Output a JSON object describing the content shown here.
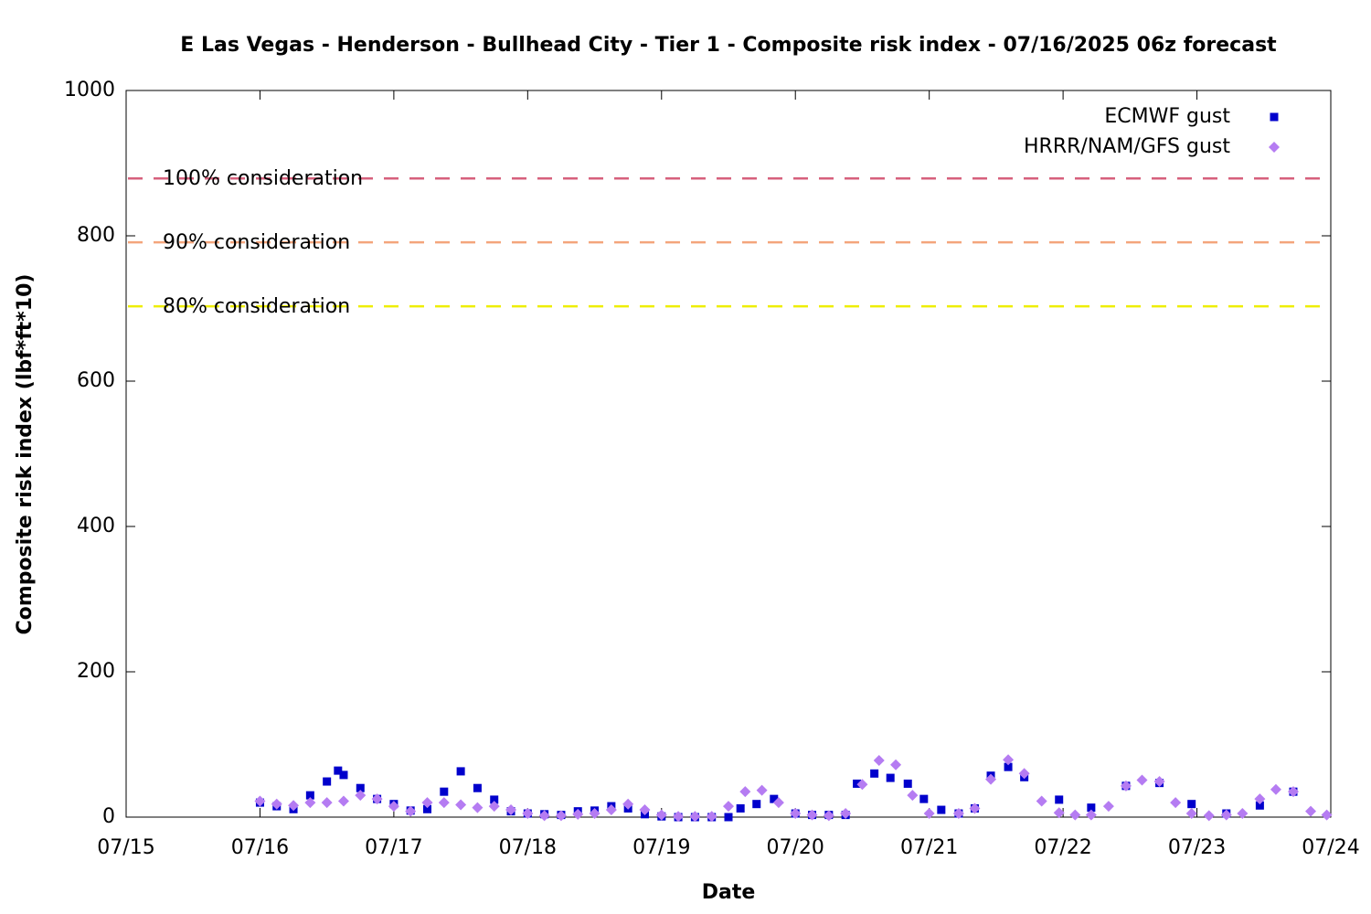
{
  "chart_data": {
    "type": "scatter",
    "title": "E Las Vegas - Henderson - Bullhead City - Tier 1 - Composite risk index - 07/16/2025 06z forecast",
    "xlabel": "Date",
    "ylabel": "Composite risk index (lbf*ft*10)",
    "xlim": [
      15,
      24
    ],
    "ylim": [
      0,
      1000
    ],
    "xticks": [
      {
        "value": 15,
        "label": "07/15"
      },
      {
        "value": 16,
        "label": "07/16"
      },
      {
        "value": 17,
        "label": "07/17"
      },
      {
        "value": 18,
        "label": "07/18"
      },
      {
        "value": 19,
        "label": "07/19"
      },
      {
        "value": 20,
        "label": "07/20"
      },
      {
        "value": 21,
        "label": "07/21"
      },
      {
        "value": 22,
        "label": "07/22"
      },
      {
        "value": 23,
        "label": "07/23"
      },
      {
        "value": 24,
        "label": "07/24"
      }
    ],
    "yticks": [
      0,
      200,
      400,
      600,
      800,
      1000
    ],
    "legend": "top-right",
    "thresholds": [
      {
        "label": "100% consideration",
        "value": 879,
        "color": "#d6607c"
      },
      {
        "label": "90% consideration",
        "value": 791,
        "color": "#f4a57c"
      },
      {
        "label": "80% consideration",
        "value": 703,
        "color": "#eeee00"
      }
    ],
    "series": [
      {
        "name": "ECMWF gust",
        "color": "#0000cc",
        "marker": "square",
        "x": [
          16.0,
          16.125,
          16.25,
          16.375,
          16.5,
          16.583,
          16.625,
          16.75,
          16.875,
          17.0,
          17.125,
          17.25,
          17.375,
          17.5,
          17.625,
          17.75,
          17.875,
          18.0,
          18.125,
          18.25,
          18.375,
          18.5,
          18.625,
          18.75,
          18.875,
          19.0,
          19.125,
          19.25,
          19.375,
          19.5,
          19.59,
          19.71,
          19.84,
          20.0,
          20.125,
          20.25,
          20.375,
          20.46,
          20.59,
          20.71,
          20.84,
          20.96,
          21.09,
          21.22,
          21.34,
          21.46,
          21.59,
          21.71,
          21.97,
          22.21,
          22.47,
          22.72,
          22.96,
          23.22,
          23.47,
          23.72
        ],
        "values": [
          20,
          15,
          11,
          30,
          49,
          64,
          58,
          40,
          25,
          18,
          9,
          11,
          35,
          63,
          40,
          24,
          8,
          5,
          4,
          3,
          8,
          9,
          15,
          12,
          4,
          1,
          0,
          0,
          0,
          0,
          12,
          18,
          25,
          5,
          3,
          3,
          3,
          46,
          60,
          54,
          46,
          25,
          10,
          5,
          12,
          57,
          69,
          55,
          24,
          13,
          43,
          47,
          18,
          5,
          16,
          35
        ]
      },
      {
        "name": "HRRR/NAM/GFS gust",
        "color": "#b57cf2",
        "marker": "diamond",
        "x": [
          16.0,
          16.125,
          16.25,
          16.375,
          16.5,
          16.625,
          16.75,
          16.875,
          17.0,
          17.125,
          17.25,
          17.375,
          17.5,
          17.625,
          17.75,
          17.875,
          18.0,
          18.125,
          18.25,
          18.375,
          18.5,
          18.625,
          18.75,
          18.875,
          19.0,
          19.125,
          19.25,
          19.375,
          19.5,
          19.625,
          19.75,
          19.875,
          20.0,
          20.125,
          20.25,
          20.375,
          20.5,
          20.625,
          20.75,
          20.875,
          21.0,
          21.22,
          21.34,
          21.46,
          21.59,
          21.71,
          21.84,
          21.97,
          22.09,
          22.21,
          22.34,
          22.47,
          22.59,
          22.72,
          22.84,
          22.96,
          23.09,
          23.22,
          23.34,
          23.47,
          23.59,
          23.72,
          23.85,
          23.97
        ],
        "values": [
          22,
          18,
          16,
          20,
          20,
          22,
          30,
          25,
          15,
          8,
          20,
          20,
          17,
          13,
          15,
          10,
          5,
          2,
          2,
          4,
          5,
          10,
          18,
          10,
          3,
          1,
          1,
          1,
          15,
          35,
          37,
          20,
          5,
          3,
          2,
          5,
          45,
          78,
          72,
          30,
          5,
          5,
          12,
          52,
          79,
          60,
          22,
          6,
          3,
          3,
          15,
          43,
          51,
          49,
          20,
          5,
          2,
          3,
          5,
          25,
          38,
          35,
          8,
          3
        ]
      }
    ]
  }
}
